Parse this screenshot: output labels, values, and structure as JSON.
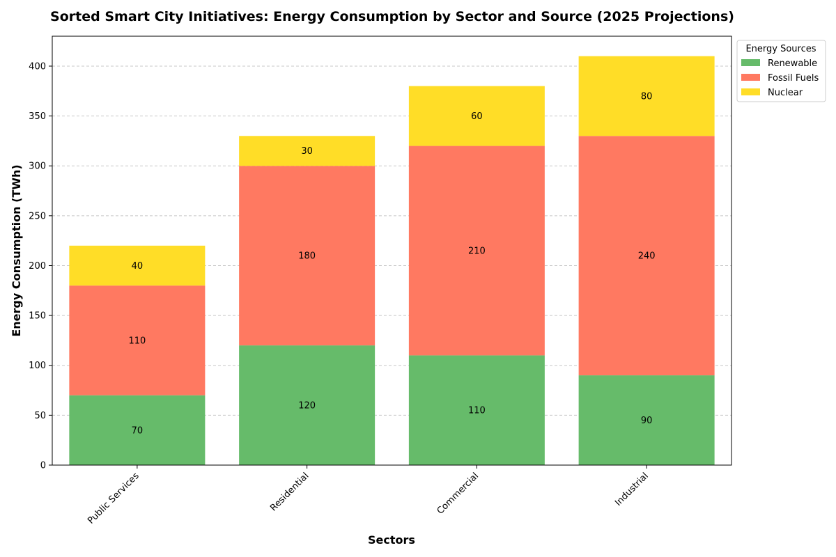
{
  "chart_data": {
    "type": "bar",
    "stacked": true,
    "title": "Sorted Smart City Initiatives: Energy Consumption by Sector and Source (2025 Projections)",
    "xlabel": "Sectors",
    "ylabel": "Energy Consumption (TWh)",
    "categories": [
      "Public Services",
      "Residential",
      "Commercial",
      "Industrial"
    ],
    "series": [
      {
        "name": "Renewable",
        "values": [
          70,
          120,
          110,
          90
        ],
        "color": "#66bb6a"
      },
      {
        "name": "Fossil Fuels",
        "values": [
          110,
          180,
          210,
          240
        ],
        "color": "#ff7961"
      },
      {
        "name": "Nuclear",
        "values": [
          40,
          30,
          60,
          80
        ],
        "color": "#ffdd27"
      }
    ],
    "ylim": [
      0,
      430
    ],
    "yticks": [
      0,
      50,
      100,
      150,
      200,
      250,
      300,
      350,
      400
    ],
    "grid": "y-dashed",
    "legend": {
      "title": "Energy Sources",
      "placement": "outside-top-right"
    }
  }
}
